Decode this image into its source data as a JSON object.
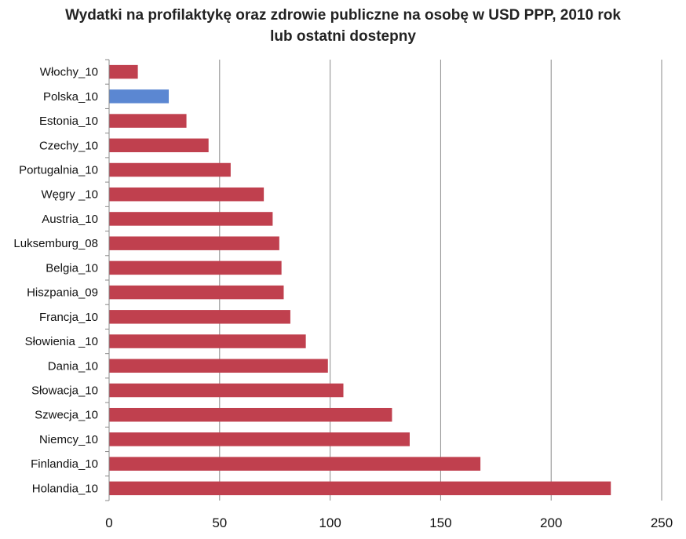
{
  "chart_data": {
    "type": "bar",
    "orientation": "horizontal",
    "title_lines": [
      "Wydatki na profilaktykę oraz zdrowie publiczne na osobę w USD PPP, 2010 rok",
      "lub ostatni dostepny"
    ],
    "categories": [
      "Włochy_10",
      "Polska_10",
      "Estonia_10",
      "Czechy_10",
      "Portugalnia_10",
      "Węgry _10",
      "Austria_10",
      "Luksemburg_08",
      "Belgia_10",
      "Hiszpania_09",
      "Francja_10",
      "Słowienia _10",
      "Dania_10",
      "Słowacja_10",
      "Szwecja_10",
      "Niemcy_10",
      "Finlandia_10",
      "Holandia_10"
    ],
    "values": [
      13,
      27,
      35,
      45,
      55,
      70,
      74,
      77,
      78,
      79,
      82,
      89,
      99,
      106,
      128,
      136,
      168,
      227
    ],
    "highlight_category": "Polska_10",
    "colors": {
      "bar": "#c0404e",
      "highlight": "#5b87d2",
      "grid": "#8a8a8a",
      "axis": "#8a8a8a"
    },
    "xlim": [
      0,
      250
    ],
    "x_ticks": [
      0,
      50,
      100,
      150,
      200,
      250
    ],
    "grid": true,
    "legend": "none"
  }
}
